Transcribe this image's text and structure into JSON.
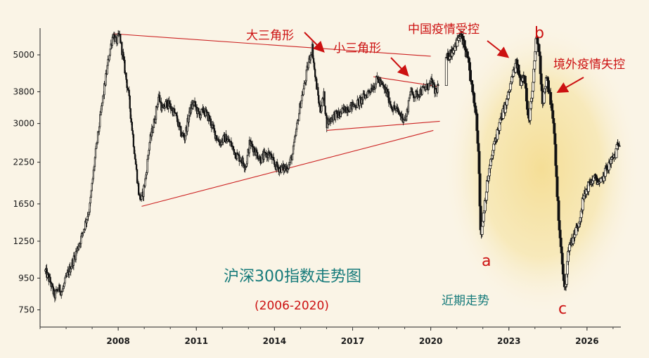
{
  "chart_data": {
    "type": "candlestick",
    "title": "沪深300指数走势图",
    "subtitle": "(2006-2020)",
    "y_scale": "log",
    "y_ticks": [
      5000,
      3800,
      3000,
      2250,
      1650,
      1250,
      950,
      750
    ],
    "x_ticks": [
      "2008",
      "2011",
      "2014",
      "2017",
      "2020",
      "2023",
      "2026"
    ],
    "ylim": [
      660,
      6100
    ],
    "xlim": [
      2005.0,
      2027.3
    ],
    "colors": {
      "candles": "#111111",
      "lines": "#cc2222",
      "annotations": "#cc1111",
      "title": "#157a7a",
      "highlight": "#f5de96"
    },
    "series": [
      {
        "values": [
          [
            2005.2,
            1000
          ],
          [
            2005.4,
            920
          ],
          [
            2005.55,
            830
          ],
          [
            2005.7,
            880
          ],
          [
            2005.85,
            860
          ],
          [
            2006.0,
            950
          ],
          [
            2006.3,
            1100
          ],
          [
            2006.6,
            1300
          ],
          [
            2006.9,
            1600
          ],
          [
            2007.1,
            2300
          ],
          [
            2007.3,
            3100
          ],
          [
            2007.5,
            4100
          ],
          [
            2007.65,
            5000
          ],
          [
            2007.8,
            5850
          ],
          [
            2007.92,
            5500
          ],
          [
            2008.05,
            5800
          ],
          [
            2008.2,
            4800
          ],
          [
            2008.4,
            3700
          ],
          [
            2008.55,
            2800
          ],
          [
            2008.7,
            2100
          ],
          [
            2008.8,
            1750
          ],
          [
            2008.9,
            1700
          ],
          [
            2009.05,
            2000
          ],
          [
            2009.2,
            2600
          ],
          [
            2009.4,
            3100
          ],
          [
            2009.55,
            3700
          ],
          [
            2009.7,
            3300
          ],
          [
            2009.85,
            3500
          ],
          [
            2010.0,
            3400
          ],
          [
            2010.2,
            3200
          ],
          [
            2010.4,
            2800
          ],
          [
            2010.55,
            2700
          ],
          [
            2010.75,
            3300
          ],
          [
            2010.9,
            3500
          ],
          [
            2011.1,
            3200
          ],
          [
            2011.3,
            3300
          ],
          [
            2011.5,
            3100
          ],
          [
            2011.7,
            2800
          ],
          [
            2011.9,
            2600
          ],
          [
            2012.1,
            2700
          ],
          [
            2012.3,
            2600
          ],
          [
            2012.5,
            2400
          ],
          [
            2012.7,
            2300
          ],
          [
            2012.9,
            2200
          ],
          [
            2013.05,
            2600
          ],
          [
            2013.2,
            2500
          ],
          [
            2013.45,
            2300
          ],
          [
            2013.6,
            2350
          ],
          [
            2013.8,
            2400
          ],
          [
            2014.0,
            2200
          ],
          [
            2014.2,
            2150
          ],
          [
            2014.4,
            2150
          ],
          [
            2014.55,
            2200
          ],
          [
            2014.7,
            2400
          ],
          [
            2014.85,
            2900
          ],
          [
            2015.0,
            3500
          ],
          [
            2015.15,
            4000
          ],
          [
            2015.3,
            4700
          ],
          [
            2015.45,
            5300
          ],
          [
            2015.55,
            4300
          ],
          [
            2015.65,
            3800
          ],
          [
            2015.75,
            3300
          ],
          [
            2015.9,
            3700
          ],
          [
            2016.0,
            3000
          ],
          [
            2016.15,
            3100
          ],
          [
            2016.3,
            3200
          ],
          [
            2016.5,
            3200
          ],
          [
            2016.7,
            3350
          ],
          [
            2016.9,
            3400
          ],
          [
            2017.1,
            3450
          ],
          [
            2017.3,
            3550
          ],
          [
            2017.5,
            3700
          ],
          [
            2017.7,
            3900
          ],
          [
            2017.85,
            4000
          ],
          [
            2017.95,
            4200
          ],
          [
            2018.1,
            4000
          ],
          [
            2018.3,
            3800
          ],
          [
            2018.5,
            3400
          ],
          [
            2018.7,
            3300
          ],
          [
            2018.9,
            3150
          ],
          [
            2019.05,
            3100
          ],
          [
            2019.2,
            3800
          ],
          [
            2019.4,
            3700
          ],
          [
            2019.6,
            3800
          ],
          [
            2019.8,
            3900
          ],
          [
            2019.95,
            4000
          ],
          [
            2020.05,
            4100
          ],
          [
            2020.15,
            3800
          ],
          [
            2020.25,
            3900
          ],
          [
            2020.65,
            4900
          ],
          [
            2020.85,
            5200
          ],
          [
            2021.0,
            5500
          ],
          [
            2021.15,
            5800
          ],
          [
            2021.3,
            5300
          ],
          [
            2021.45,
            4700
          ],
          [
            2021.6,
            3800
          ],
          [
            2021.75,
            3200
          ],
          [
            2021.85,
            2300
          ],
          [
            2021.92,
            1280
          ],
          [
            2022.05,
            1600
          ],
          [
            2022.2,
            2000
          ],
          [
            2022.45,
            2600
          ],
          [
            2022.7,
            3100
          ],
          [
            2022.95,
            3600
          ],
          [
            2023.15,
            4300
          ],
          [
            2023.3,
            4700
          ],
          [
            2023.45,
            4100
          ],
          [
            2023.6,
            4400
          ],
          [
            2023.75,
            3000
          ],
          [
            2023.9,
            3700
          ],
          [
            2024.05,
            5700
          ],
          [
            2024.15,
            5300
          ],
          [
            2024.3,
            3500
          ],
          [
            2024.45,
            4200
          ],
          [
            2024.6,
            3600
          ],
          [
            2024.75,
            2800
          ],
          [
            2024.85,
            1800
          ],
          [
            2024.95,
            1350
          ],
          [
            2025.05,
            1050
          ],
          [
            2025.15,
            850
          ],
          [
            2025.3,
            1200
          ],
          [
            2025.5,
            1300
          ],
          [
            2025.7,
            1450
          ],
          [
            2025.85,
            1700
          ],
          [
            2026.0,
            1850
          ],
          [
            2026.15,
            1950
          ],
          [
            2026.35,
            2000
          ],
          [
            2026.5,
            1900
          ],
          [
            2026.7,
            2100
          ],
          [
            2026.9,
            2250
          ],
          [
            2027.1,
            2400
          ],
          [
            2027.25,
            2650
          ]
        ]
      }
    ],
    "trendlines": [
      {
        "from": [
          2007.8,
          5850
        ],
        "to": [
          2020.0,
          4950
        ]
      },
      {
        "from": [
          2008.9,
          1620
        ],
        "to": [
          2020.1,
          2850
        ]
      },
      {
        "from": [
          2016.0,
          2850
        ],
        "to": [
          2020.35,
          3050
        ]
      },
      {
        "from": [
          2017.8,
          4250
        ],
        "to": [
          2020.3,
          3950
        ]
      }
    ],
    "annotations": [
      {
        "text": "大三角形",
        "arrow_to": [
          2015.55,
          5450
        ]
      },
      {
        "text": "小三角形",
        "arrow_to": [
          2019.4,
          4450
        ]
      },
      {
        "text": "中国疫情受控",
        "arrow_to": [
          2023.0,
          5500
        ]
      },
      {
        "text": "b"
      },
      {
        "text": "境外疫情失控",
        "arrow_to": [
          2024.45,
          4300
        ]
      },
      {
        "text": "a"
      },
      {
        "text": "c"
      },
      {
        "text": "近期走势"
      }
    ]
  }
}
